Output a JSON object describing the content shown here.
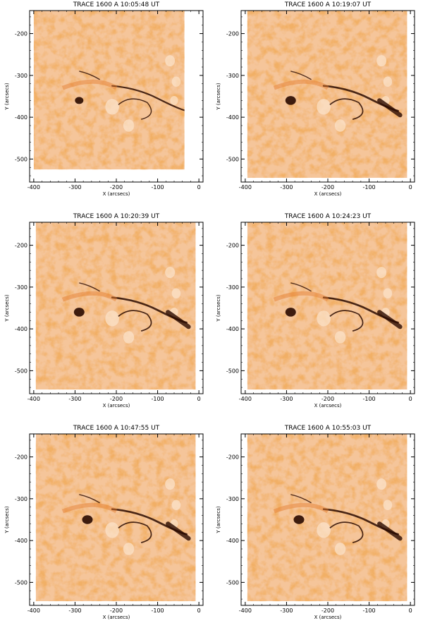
{
  "figure": {
    "xlabel": "X (arcsecs)",
    "ylabel": "Y (arcsecs)",
    "x_ticks": [
      -400,
      -300,
      -200,
      -100,
      0
    ],
    "y_ticks": [
      -200,
      -300,
      -400,
      -500
    ],
    "xlim": [
      -410,
      10
    ],
    "ylim": [
      -555,
      -145
    ],
    "colors": {
      "background": "#f5c59a",
      "light": "#fbe2c8",
      "mid": "#e57a2a",
      "dark": "#2a0a00"
    }
  },
  "panels": [
    {
      "title": "TRACE 1600 A 10:05:48 UT",
      "data_xlim": [
        -400,
        -35
      ],
      "data_ylim": [
        -525,
        -145
      ]
    },
    {
      "title": "TRACE 1600 A 10:19:07 UT",
      "data_xlim": [
        -395,
        -8
      ],
      "data_ylim": [
        -545,
        -145
      ]
    },
    {
      "title": "TRACE 1600 A 10:20:39 UT",
      "data_xlim": [
        -395,
        -8
      ],
      "data_ylim": [
        -545,
        -145
      ]
    },
    {
      "title": "TRACE 1600 A 10:24:23 UT",
      "data_xlim": [
        -395,
        -8
      ],
      "data_ylim": [
        -545,
        -145
      ]
    },
    {
      "title": "TRACE 1600 A 10:47:55 UT",
      "data_xlim": [
        -395,
        -8
      ],
      "data_ylim": [
        -545,
        -145
      ]
    },
    {
      "title": "TRACE 1600 A 10:55:03 UT",
      "data_xlim": [
        -395,
        -8
      ],
      "data_ylim": [
        -545,
        -145
      ]
    }
  ]
}
